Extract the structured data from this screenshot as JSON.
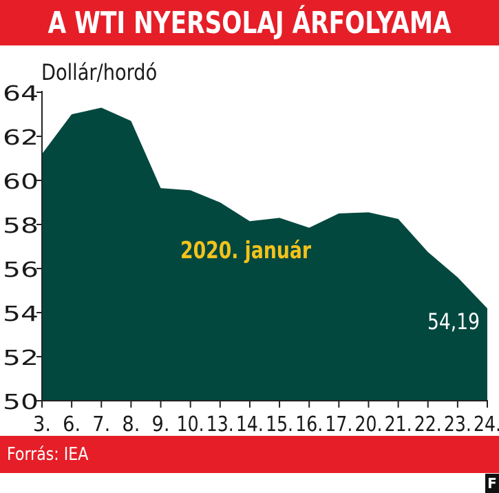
{
  "header": {
    "title": "A WTI NYERSOLAJ ÁRFOLYAMA"
  },
  "footer": {
    "source": "Forrás: IEA",
    "logo": "F"
  },
  "colors": {
    "accent": "#e61e28",
    "area": "#02483f",
    "highlight": "#f3c21b"
  },
  "chart_data": {
    "type": "area",
    "ylabel": "Dollár/hordó",
    "annotation": "2020. január",
    "last_value_label": "54,19",
    "categories": [
      "3.",
      "6.",
      "7.",
      "8.",
      "9.",
      "10.",
      "13.",
      "14.",
      "15.",
      "16.",
      "17.",
      "20.",
      "21.",
      "22.",
      "23.",
      "24."
    ],
    "values": [
      61.2,
      63.0,
      63.3,
      62.7,
      59.65,
      59.55,
      59.0,
      58.15,
      58.3,
      57.85,
      58.5,
      58.55,
      58.25,
      56.75,
      55.6,
      54.19
    ],
    "ylim": [
      50,
      64
    ],
    "yticks": [
      50,
      52,
      54,
      56,
      58,
      60,
      62,
      64
    ],
    "grid": false
  }
}
